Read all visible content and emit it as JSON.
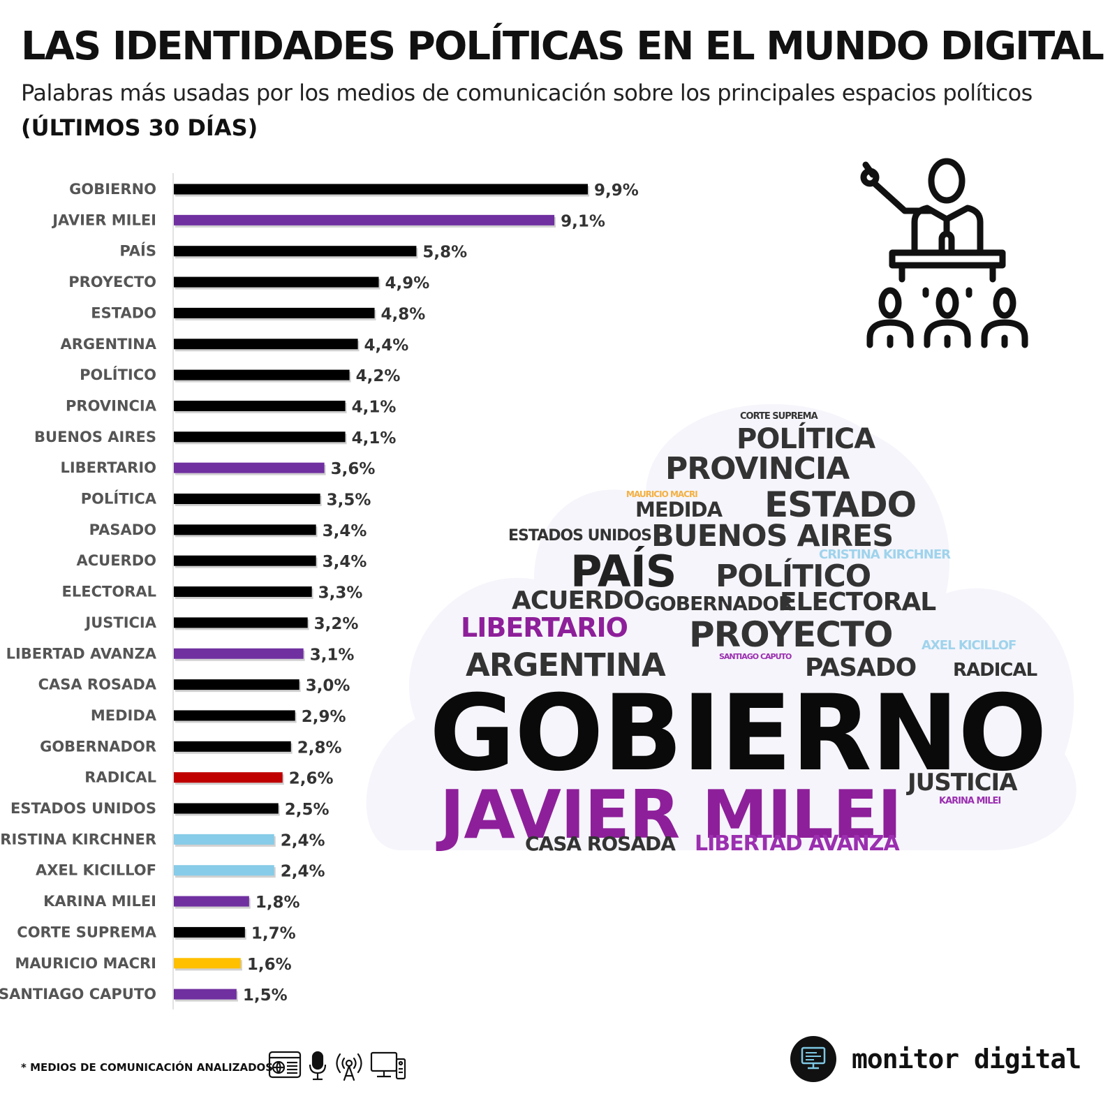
{
  "header": {
    "title": "LAS IDENTIDADES POLÍTICAS EN EL MUNDO DIGITAL",
    "subtitle": "Palabras más usadas por los medios de comunicación sobre los principales espacios políticos",
    "period": "(ÚLTIMOS 30 DÍAS)"
  },
  "colors": {
    "black": "#000000",
    "purple": "#7030a0",
    "red": "#c00000",
    "light_blue": "#87cce8",
    "gold": "#ffc000",
    "cloud_bg": "#f5f5fb"
  },
  "chart_data": {
    "type": "bar",
    "orientation": "horizontal",
    "categories": [
      "GOBIERNO",
      "JAVIER MILEI",
      "PAÍS",
      "PROYECTO",
      "ESTADO",
      "ARGENTINA",
      "POLÍTICO",
      "PROVINCIA",
      "BUENOS AIRES",
      "LIBERTARIO",
      "POLÍTICA",
      "PASADO",
      "ACUERDO",
      "ELECTORAL",
      "JUSTICIA",
      "LIBERTAD AVANZA",
      "CASA ROSADA",
      "MEDIDA",
      "GOBERNADOR",
      "RADICAL",
      "ESTADOS UNIDOS",
      "CRISTINA KIRCHNER",
      "AXEL KICILLOF",
      "KARINA MILEI",
      "CORTE SUPREMA",
      "MAURICIO MACRI",
      "SANTIAGO CAPUTO"
    ],
    "values": [
      9.9,
      9.1,
      5.8,
      4.9,
      4.8,
      4.4,
      4.2,
      4.1,
      4.1,
      3.6,
      3.5,
      3.4,
      3.4,
      3.3,
      3.2,
      3.1,
      3.0,
      2.9,
      2.8,
      2.6,
      2.5,
      2.4,
      2.4,
      1.8,
      1.7,
      1.6,
      1.5
    ],
    "value_labels": [
      "9,9%",
      "9,1%",
      "5,8%",
      "4,9%",
      "4,8%",
      "4,4%",
      "4,2%",
      "4,1%",
      "4,1%",
      "3,6%",
      "3,5%",
      "3,4%",
      "3,4%",
      "3,3%",
      "3,2%",
      "3,1%",
      "3,0%",
      "2,9%",
      "2,8%",
      "2,6%",
      "2,5%",
      "2,4%",
      "2,4%",
      "1,8%",
      "1,7%",
      "1,6%",
      "1,5%"
    ],
    "bar_colors": [
      "#000000",
      "#7030a0",
      "#000000",
      "#000000",
      "#000000",
      "#000000",
      "#000000",
      "#000000",
      "#000000",
      "#7030a0",
      "#000000",
      "#000000",
      "#000000",
      "#000000",
      "#000000",
      "#7030a0",
      "#000000",
      "#000000",
      "#000000",
      "#c00000",
      "#000000",
      "#87cce8",
      "#87cce8",
      "#7030a0",
      "#000000",
      "#ffc000",
      "#7030a0"
    ],
    "value_unit": "%",
    "xlim": [
      0,
      10
    ],
    "grid": false,
    "legend": "none"
  },
  "word_cloud": {
    "words": [
      {
        "text": "CORTE SUPREMA",
        "color": "#333333"
      },
      {
        "text": "POLÍTICA",
        "color": "#333333"
      },
      {
        "text": "PROVINCIA",
        "color": "#333333"
      },
      {
        "text": "MAURICIO MACRI",
        "color": "#f4b042"
      },
      {
        "text": "MEDIDA",
        "color": "#333333"
      },
      {
        "text": "ESTADO",
        "color": "#333333"
      },
      {
        "text": "ESTADOS UNIDOS",
        "color": "#333333"
      },
      {
        "text": "BUENOS AIRES",
        "color": "#333333"
      },
      {
        "text": "CRISTINA KIRCHNER",
        "color": "#9fd3ec"
      },
      {
        "text": "PAÍS",
        "color": "#222222"
      },
      {
        "text": "POLÍTICO",
        "color": "#333333"
      },
      {
        "text": "ACUERDO",
        "color": "#333333"
      },
      {
        "text": "GOBERNADOR",
        "color": "#333333"
      },
      {
        "text": "ELECTORAL",
        "color": "#333333"
      },
      {
        "text": "LIBERTARIO",
        "color": "#8e1f9a"
      },
      {
        "text": "PROYECTO",
        "color": "#333333"
      },
      {
        "text": "AXEL KICILLOF",
        "color": "#9fd3ec"
      },
      {
        "text": "ARGENTINA",
        "color": "#333333"
      },
      {
        "text": "SANTIAGO CAPUTO",
        "color": "#9b2fb0"
      },
      {
        "text": "PASADO",
        "color": "#333333"
      },
      {
        "text": "RADICAL",
        "color": "#333333"
      },
      {
        "text": "GOBIERNO",
        "color": "#0a0a0a"
      },
      {
        "text": "JAVIER MILEI",
        "color": "#8e1f9a"
      },
      {
        "text": "JUSTICIA",
        "color": "#333333"
      },
      {
        "text": "KARINA MILEI",
        "color": "#9b2fb0"
      },
      {
        "text": "CASA ROSADA",
        "color": "#333333"
      },
      {
        "text": "LIBERTAD AVANZA",
        "color": "#9b2fb0"
      }
    ]
  },
  "icons": {
    "speaker": "speaker-at-podium-icon",
    "media": [
      "web-browser-icon",
      "microphone-icon",
      "broadcast-antenna-icon",
      "tv-monitor-icon"
    ],
    "brand": "monitor-logo-icon"
  },
  "footer": {
    "note": "* MEDIOS DE COMUNICACIÓN ANALIZADOS",
    "brand": "monitor digital"
  }
}
